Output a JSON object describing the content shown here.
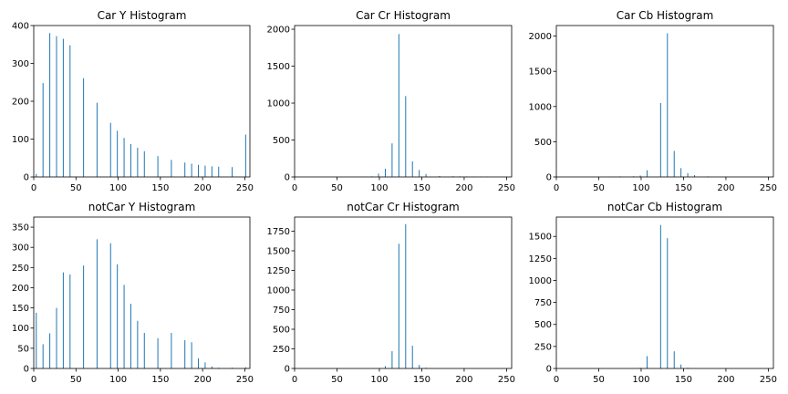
{
  "chart_data": [
    {
      "type": "bar",
      "title": "Car Y Histogram",
      "xlim": [
        0,
        256
      ],
      "ylim": [
        0,
        400
      ],
      "xticks": [
        0,
        50,
        100,
        150,
        200,
        250
      ],
      "yticks": [
        0,
        100,
        200,
        300,
        400
      ],
      "x": [
        3,
        11,
        19,
        27,
        35,
        43,
        59,
        75,
        91,
        99,
        107,
        115,
        123,
        131,
        147,
        163,
        179,
        187,
        195,
        203,
        211,
        219,
        235,
        251
      ],
      "values": [
        8,
        248,
        380,
        372,
        365,
        348,
        261,
        196,
        143,
        122,
        103,
        87,
        77,
        68,
        55,
        45,
        38,
        35,
        32,
        30,
        28,
        27,
        26,
        112
      ]
    },
    {
      "type": "bar",
      "title": "Car Cr Histogram",
      "xlim": [
        0,
        256
      ],
      "ylim": [
        0,
        2050
      ],
      "xticks": [
        0,
        50,
        100,
        150,
        200,
        250
      ],
      "yticks": [
        0,
        500,
        1000,
        1500,
        2000
      ],
      "x": [
        83,
        91,
        99,
        107,
        115,
        123,
        131,
        139,
        147,
        155,
        171,
        187,
        195,
        203,
        211,
        219,
        227
      ],
      "values": [
        5,
        8,
        45,
        110,
        455,
        1935,
        1095,
        210,
        95,
        40,
        12,
        10,
        8,
        7,
        6,
        5,
        4
      ]
    },
    {
      "type": "bar",
      "title": "Car Cb Histogram",
      "xlim": [
        0,
        256
      ],
      "ylim": [
        0,
        2150
      ],
      "xticks": [
        0,
        50,
        100,
        150,
        200,
        250
      ],
      "yticks": [
        0,
        500,
        1000,
        1500,
        2000
      ],
      "x": [
        67,
        75,
        91,
        99,
        107,
        123,
        131,
        139,
        147,
        155,
        163,
        179
      ],
      "values": [
        6,
        8,
        10,
        20,
        95,
        1050,
        2040,
        370,
        125,
        55,
        25,
        8
      ]
    },
    {
      "type": "bar",
      "title": "notCar Y Histogram",
      "xlim": [
        0,
        256
      ],
      "ylim": [
        0,
        375
      ],
      "xticks": [
        0,
        50,
        100,
        150,
        200,
        250
      ],
      "yticks": [
        0,
        50,
        100,
        150,
        200,
        250,
        300,
        350
      ],
      "x": [
        3,
        11,
        19,
        27,
        35,
        43,
        59,
        75,
        91,
        99,
        107,
        115,
        123,
        131,
        147,
        163,
        179,
        187,
        195,
        203,
        211,
        219,
        235,
        251
      ],
      "values": [
        138,
        60,
        87,
        150,
        238,
        233,
        255,
        320,
        310,
        258,
        207,
        160,
        118,
        88,
        75,
        88,
        70,
        65,
        25,
        15,
        5,
        2,
        2,
        3
      ]
    },
    {
      "type": "bar",
      "title": "notCar Cr Histogram",
      "xlim": [
        0,
        256
      ],
      "ylim": [
        0,
        1930
      ],
      "xticks": [
        0,
        50,
        100,
        150,
        200,
        250
      ],
      "yticks": [
        0,
        250,
        500,
        750,
        1000,
        1250,
        1500,
        1750
      ],
      "x": [
        107,
        115,
        123,
        131,
        139,
        147,
        155
      ],
      "values": [
        30,
        220,
        1590,
        1840,
        290,
        45,
        10
      ]
    },
    {
      "type": "bar",
      "title": "notCar Cb Histogram",
      "xlim": [
        0,
        256
      ],
      "ylim": [
        0,
        1720
      ],
      "xticks": [
        0,
        50,
        100,
        150,
        200,
        250
      ],
      "yticks": [
        0,
        250,
        500,
        750,
        1000,
        1250,
        1500
      ],
      "x": [
        99,
        107,
        123,
        131,
        139,
        147,
        155
      ],
      "values": [
        8,
        140,
        1630,
        1480,
        195,
        45,
        8
      ]
    }
  ],
  "style": {
    "bar_color": "#1f77b4",
    "axis_color": "#000000"
  }
}
